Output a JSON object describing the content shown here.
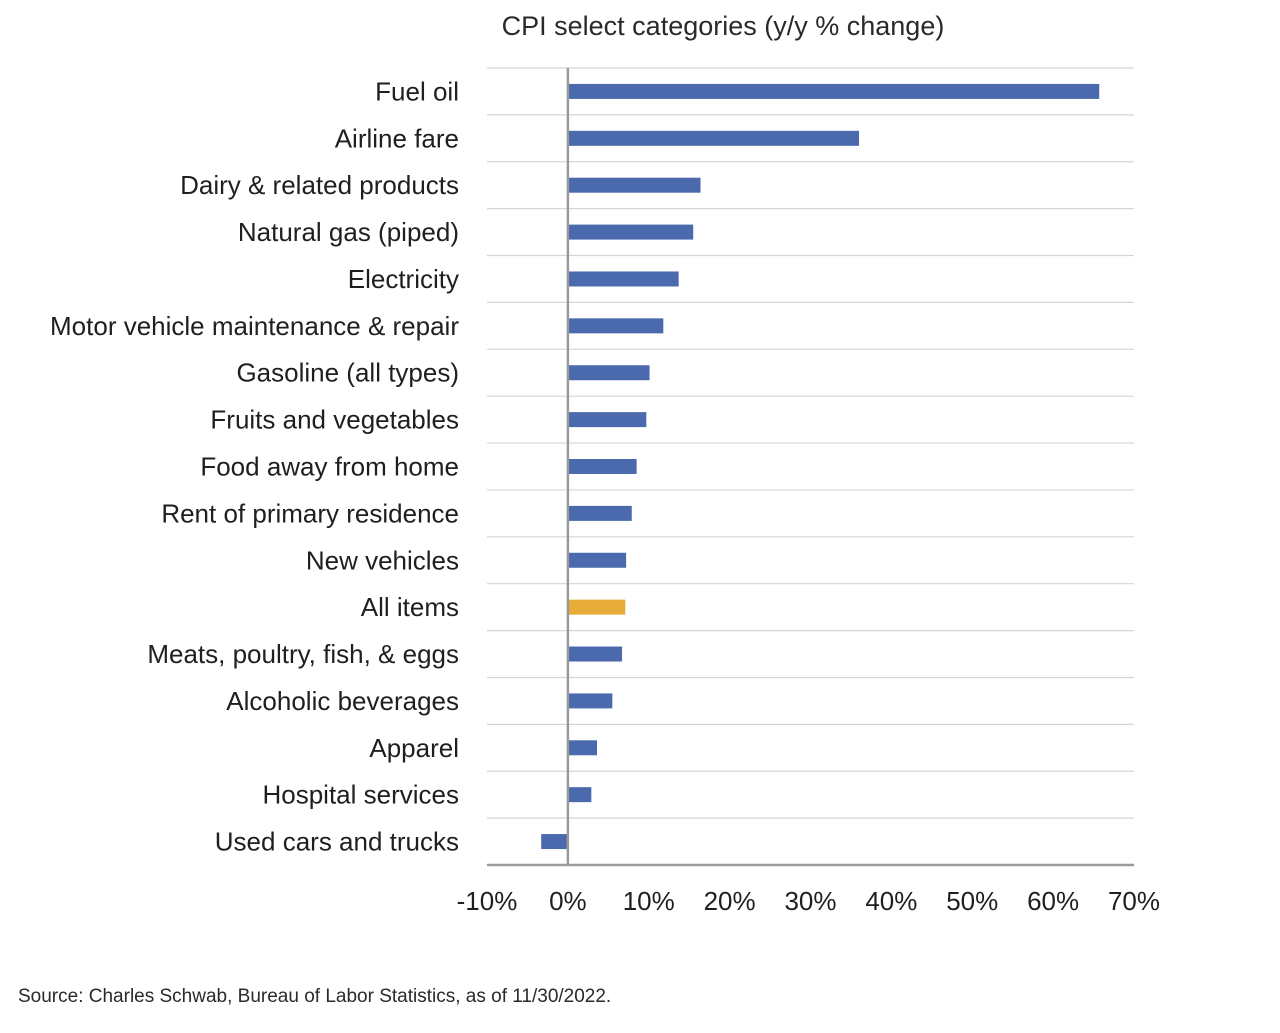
{
  "source_note": "Source: Charles Schwab, Bureau of Labor Statistics, as of 11/30/2022.",
  "colors": {
    "bar": "#4a6aad",
    "highlight": "#e8ac39",
    "grid": "#d6d6d6",
    "axis": "#9a9a9a"
  },
  "chart_data": {
    "type": "bar",
    "orientation": "horizontal",
    "title": "CPI select categories (y/y % change)",
    "xlabel": "",
    "ylabel": "",
    "categories": [
      "Fuel oil",
      "Airline fare",
      "Dairy & related products",
      "Natural gas (piped)",
      "Electricity",
      "Motor vehicle maintenance & repair",
      "Gasoline (all types)",
      "Fruits and vegetables",
      "Food away from home",
      "Rent of primary residence",
      "New vehicles",
      "All items",
      "Meats, poultry, fish, & eggs",
      "Alcoholic beverages",
      "Apparel",
      "Hospital services",
      "Used cars and trucks"
    ],
    "values": [
      65.7,
      36.0,
      16.4,
      15.5,
      13.7,
      11.8,
      10.1,
      9.7,
      8.5,
      7.9,
      7.2,
      7.1,
      6.7,
      5.5,
      3.6,
      2.9,
      -3.3
    ],
    "highlight_category": "All items",
    "xlim": [
      -10,
      70
    ],
    "xticks": [
      -10,
      0,
      10,
      20,
      30,
      40,
      50,
      60,
      70
    ],
    "xtick_labels": [
      "-10%",
      "0%",
      "10%",
      "20%",
      "30%",
      "40%",
      "50%",
      "60%",
      "70%"
    ],
    "grid": true,
    "legend": "none"
  }
}
